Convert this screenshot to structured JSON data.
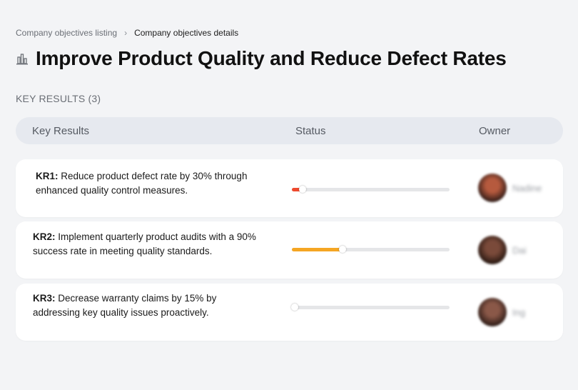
{
  "breadcrumb": {
    "parent": "Company objectives listing",
    "separator": "›",
    "current": "Company objectives details"
  },
  "objective": {
    "icon": "building-chart-icon",
    "title": "Improve Product Quality and Reduce Defect Rates"
  },
  "key_results_label": "KEY RESULTS (3)",
  "table": {
    "headers": {
      "key_results": "Key Results",
      "status": "Status",
      "owner": "Owner"
    },
    "rows": [
      {
        "code": "KR1:",
        "text": "Reduce product defect rate by 30% through enhanced quality control measures.",
        "progress": 0.07,
        "progress_color": "#ef4a2e",
        "owner_name": "Nadine",
        "avatar_colors": [
          "#b65a3e",
          "#2d1a16"
        ]
      },
      {
        "code": "KR2:",
        "text": "Implement quarterly product audits with a 90% success rate in meeting quality standards.",
        "progress": 0.32,
        "progress_color": "#f5a623",
        "owner_name": "Dai",
        "avatar_colors": [
          "#7a4a3a",
          "#24150f"
        ]
      },
      {
        "code": "KR3:",
        "text": "Decrease warranty claims by 15% by addressing key quality issues proactively.",
        "progress": 0.02,
        "progress_color": "#ef4a2e",
        "owner_name": "Ing",
        "avatar_colors": [
          "#8a5848",
          "#2a1914"
        ]
      }
    ]
  }
}
